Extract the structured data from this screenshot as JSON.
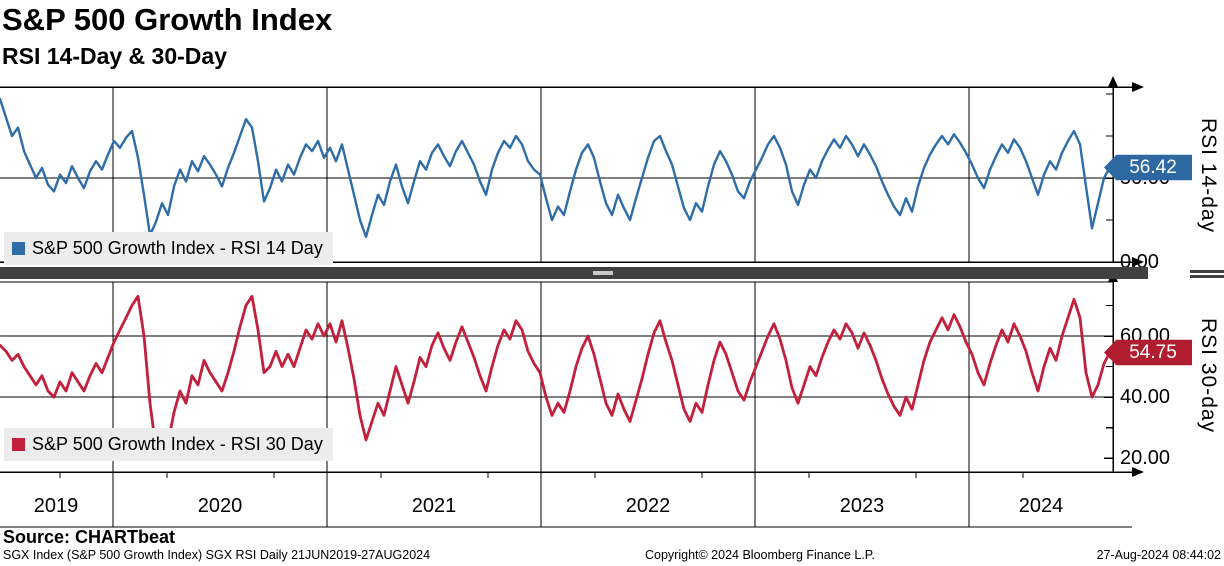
{
  "header": {
    "title": "S&P 500 Growth Index",
    "subtitle": "RSI 14-Day & 30-Day"
  },
  "chart_data": [
    {
      "type": "line",
      "name": "S&P 500 Growth Index - RSI 14 Day",
      "ylabel": "RSI 14-day",
      "color": "#2e6da8",
      "flag_color": "#2d68a3",
      "last_value": 56.42,
      "last_label": "56.42",
      "ylim": [
        0,
        105
      ],
      "grid_values": [
        50
      ],
      "yticks": [
        {
          "value": 50,
          "label": "50.00"
        },
        {
          "value": 0,
          "label": "0.00"
        }
      ],
      "yticks_minor": [
        100,
        75,
        25
      ],
      "frequency": "Daily",
      "x_range": "21JUN2019-27AUG2024",
      "values": [
        97,
        86,
        75,
        80,
        66,
        58,
        50,
        56,
        46,
        42,
        52,
        47,
        57,
        50,
        44,
        54,
        60,
        55,
        64,
        72,
        68,
        74,
        78,
        62,
        40,
        16,
        24,
        35,
        28,
        45,
        55,
        48,
        60,
        54,
        63,
        58,
        52,
        45,
        56,
        65,
        75,
        85,
        80,
        60,
        36,
        44,
        55,
        48,
        58,
        52,
        62,
        70,
        66,
        72,
        62,
        68,
        60,
        70,
        55,
        40,
        25,
        15,
        28,
        40,
        34,
        48,
        58,
        45,
        35,
        48,
        60,
        55,
        65,
        70,
        63,
        57,
        66,
        72,
        65,
        58,
        48,
        40,
        55,
        65,
        72,
        68,
        75,
        70,
        60,
        55,
        52,
        38,
        25,
        33,
        28,
        42,
        55,
        65,
        70,
        62,
        48,
        35,
        28,
        40,
        32,
        25,
        38,
        50,
        62,
        72,
        75,
        66,
        58,
        45,
        32,
        25,
        35,
        30,
        45,
        58,
        66,
        60,
        52,
        42,
        38,
        48,
        55,
        62,
        70,
        75,
        68,
        58,
        42,
        34,
        46,
        55,
        50,
        60,
        67,
        73,
        68,
        75,
        70,
        63,
        70,
        64,
        57,
        48,
        40,
        33,
        28,
        38,
        30,
        45,
        56,
        64,
        70,
        75,
        70,
        76,
        71,
        65,
        58,
        50,
        44,
        55,
        63,
        70,
        65,
        73,
        68,
        60,
        50,
        40,
        52,
        60,
        55,
        65,
        72,
        78,
        70,
        45,
        20,
        35,
        50,
        56.4
      ]
    },
    {
      "type": "line",
      "name": "S&P 500 Growth Index - RSI 30 Day",
      "ylabel": "RSI 30-day",
      "color": "#c2203c",
      "flag_color": "#b01d31",
      "last_value": 54.75,
      "last_label": "54.75",
      "ylim": [
        16,
        78
      ],
      "grid_values": [
        60,
        40
      ],
      "yticks": [
        {
          "value": 60,
          "label": "60.00"
        },
        {
          "value": 40,
          "label": "40.00"
        },
        {
          "value": 20,
          "label": "20.00"
        }
      ],
      "yticks_minor": [
        70,
        50,
        30
      ],
      "frequency": "Daily",
      "x_range": "21JUN2019-27AUG2024",
      "values": [
        57,
        55,
        52,
        54,
        50,
        47,
        44,
        47,
        42,
        40,
        45,
        42,
        48,
        45,
        42,
        47,
        51,
        48,
        53,
        58,
        62,
        66,
        70,
        73,
        60,
        38,
        23,
        28,
        25,
        35,
        42,
        38,
        47,
        44,
        52,
        48,
        45,
        42,
        48,
        55,
        63,
        70,
        73,
        62,
        48,
        50,
        55,
        50,
        54,
        50,
        56,
        62,
        59,
        64,
        60,
        64,
        58,
        65,
        56,
        46,
        34,
        26,
        32,
        38,
        34,
        42,
        50,
        44,
        38,
        45,
        53,
        50,
        57,
        61,
        56,
        52,
        58,
        63,
        58,
        53,
        47,
        42,
        50,
        57,
        62,
        59,
        65,
        62,
        55,
        51,
        48,
        40,
        34,
        38,
        35,
        42,
        50,
        56,
        60,
        54,
        46,
        38,
        34,
        41,
        36,
        32,
        39,
        46,
        54,
        61,
        65,
        58,
        52,
        44,
        36,
        32,
        38,
        35,
        44,
        52,
        58,
        54,
        48,
        42,
        39,
        45,
        50,
        55,
        60,
        64,
        59,
        52,
        43,
        38,
        44,
        50,
        47,
        53,
        58,
        62,
        59,
        64,
        61,
        56,
        61,
        57,
        52,
        46,
        41,
        37,
        34,
        40,
        36,
        44,
        52,
        58,
        62,
        66,
        62,
        67,
        63,
        58,
        54,
        48,
        44,
        51,
        57,
        62,
        58,
        64,
        60,
        55,
        48,
        42,
        50,
        56,
        52,
        60,
        66,
        72,
        66,
        48,
        40,
        44,
        51,
        54.75
      ]
    }
  ],
  "x_axis": {
    "years": [
      "2019",
      "2020",
      "2021",
      "2022",
      "2023",
      "2024"
    ]
  },
  "footer": {
    "source": "Source: CHARTbeat",
    "security_line": "SGX Index (S&P 500 Growth Index) SGX RSI  Daily 21JUN2019-27AUG2024",
    "copyright": "Copyright© 2024 Bloomberg Finance L.P.",
    "timestamp": "27-Aug-2024 08:44:02"
  }
}
